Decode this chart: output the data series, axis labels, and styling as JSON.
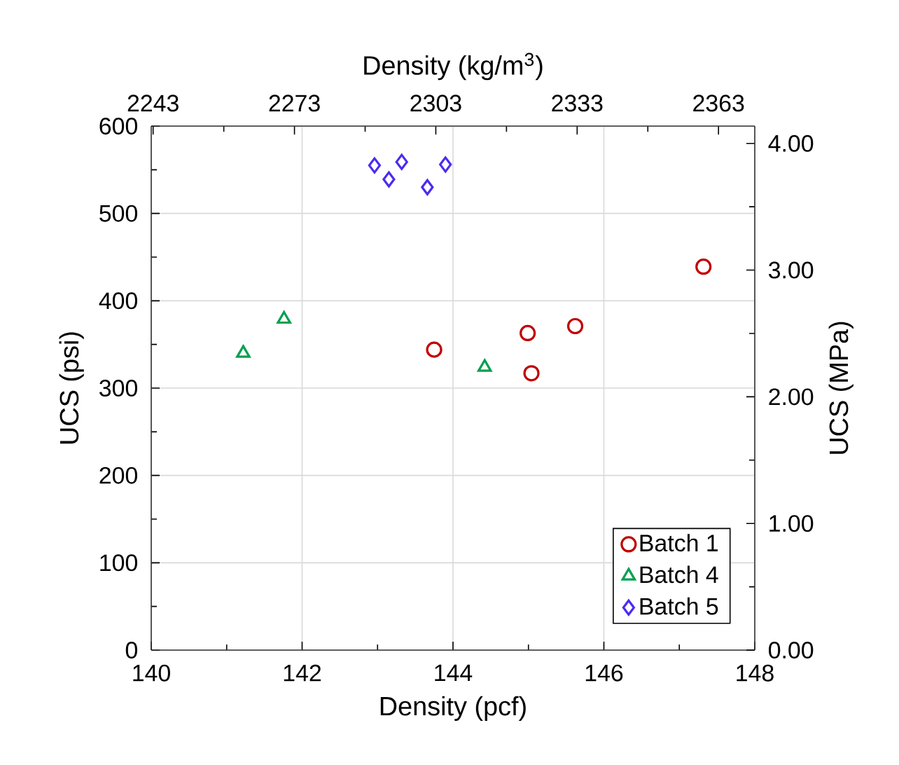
{
  "chart_data": {
    "type": "scatter",
    "xlabel": "Density (pcf)",
    "ylabel": "UCS (psi)",
    "x2label": "Density (kg/m$^{3}$)",
    "y2label": "UCS (MPa)",
    "xlim": [
      140,
      148
    ],
    "xticks": [
      140,
      142,
      144,
      146,
      148
    ],
    "ylim": [
      0,
      600
    ],
    "yticks": [
      0,
      100,
      200,
      300,
      400,
      500,
      600
    ],
    "x2lim": [
      2242.6,
      2370.7
    ],
    "x2ticks": [
      2243,
      2273,
      2303,
      2333,
      2363
    ],
    "y2lim": [
      0,
      4.137
    ],
    "y2ticks": [
      {
        "value": 0,
        "label": "0.00"
      },
      {
        "value": 1,
        "label": "1.00"
      },
      {
        "value": 2,
        "label": "2.00"
      },
      {
        "value": 3,
        "label": "3.00"
      },
      {
        "value": 4,
        "label": "4.00"
      }
    ],
    "grid": true,
    "legend": "bottom right",
    "series": [
      {
        "name": "Batch 1",
        "color": "#c00000",
        "marker": "circle",
        "x": [
          143.75,
          144.99,
          145.04,
          145.62,
          147.32
        ],
        "values": [
          344,
          363,
          317,
          371,
          439
        ]
      },
      {
        "name": "Batch 4",
        "color": "#00a050",
        "marker": "triangle",
        "x": [
          141.22,
          141.76,
          144.42
        ],
        "values": [
          340,
          379,
          324
        ]
      },
      {
        "name": "Batch 5",
        "color": "#4b2bf0",
        "marker": "diamond",
        "x": [
          142.96,
          143.15,
          143.32,
          143.66,
          143.9
        ],
        "values": [
          555,
          539,
          559,
          530,
          556
        ]
      }
    ]
  }
}
